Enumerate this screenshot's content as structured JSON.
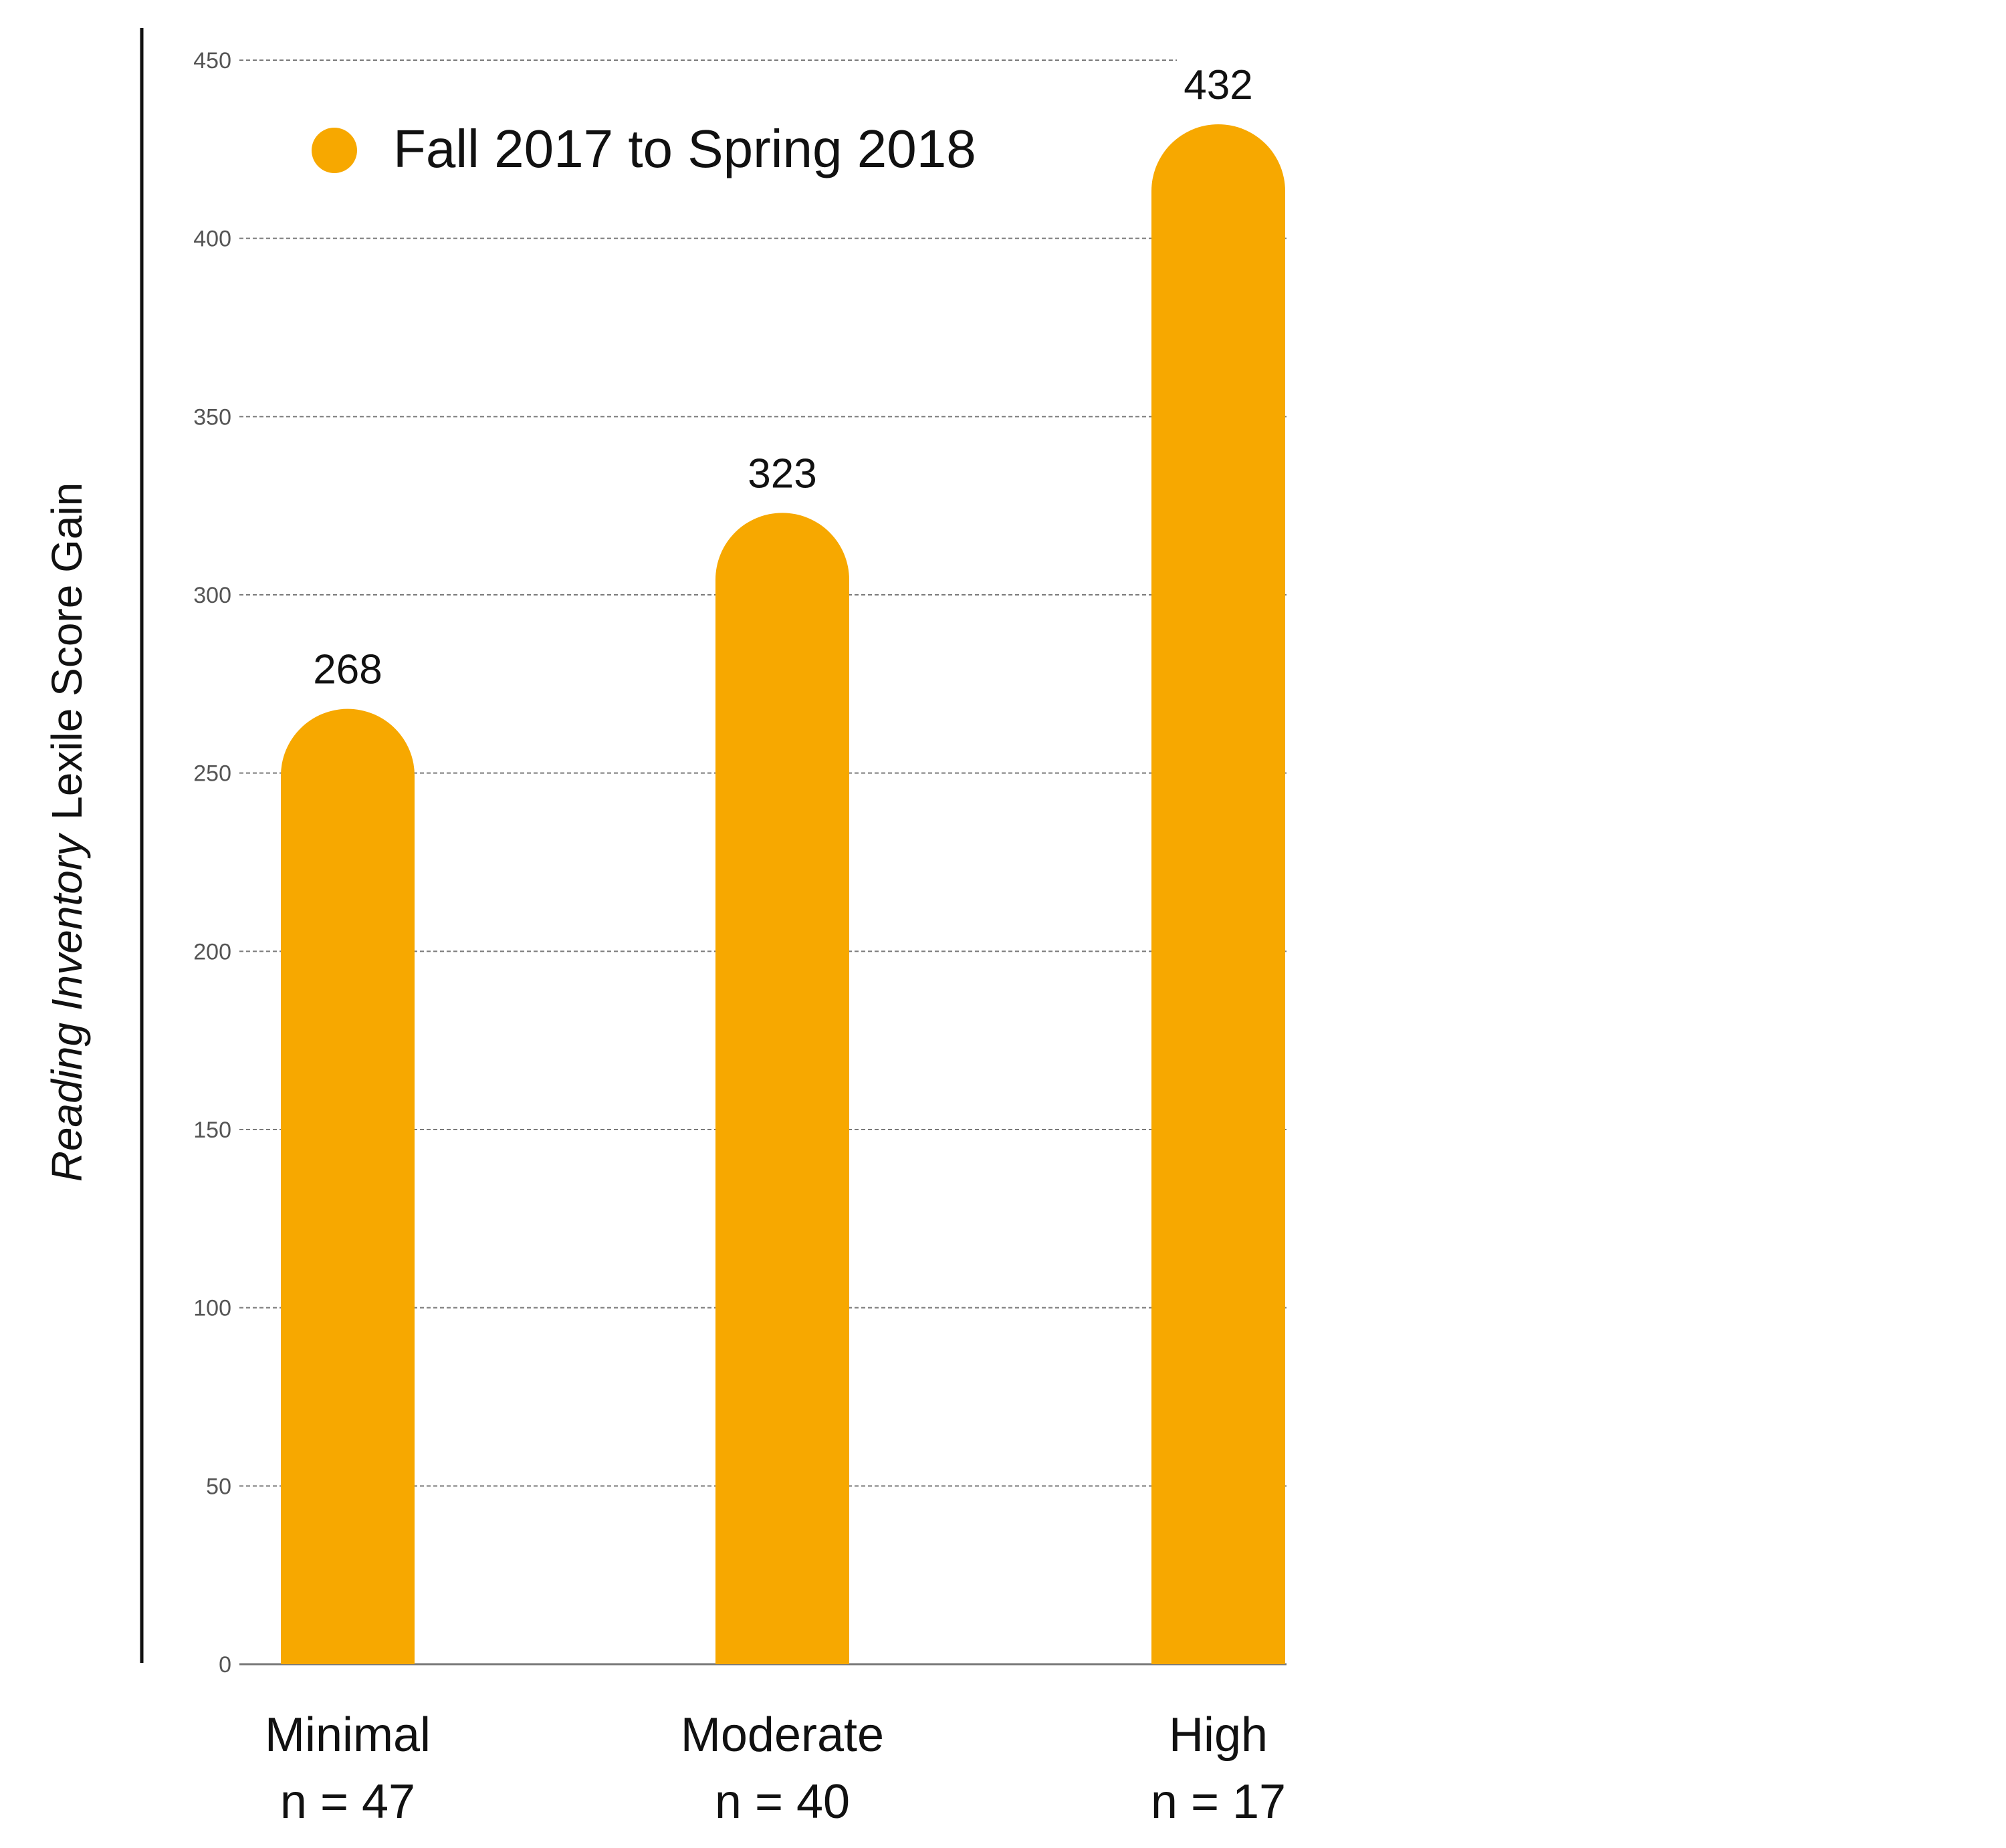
{
  "chart_data": {
    "type": "bar",
    "categories": [
      "Minimal",
      "Moderate",
      "High"
    ],
    "category_sublabels": [
      "n = 47",
      "n = 40",
      "n = 17"
    ],
    "series": [
      {
        "name": "Fall 2017 to Spring 2018",
        "values": [
          268,
          323,
          432
        ]
      }
    ],
    "data_labels": [
      "268",
      "323",
      "432"
    ],
    "ylabel_italic": "Reading Inventory",
    "ylabel_rest": "Lexile Score Gain",
    "ylim": [
      0,
      450
    ],
    "yticks": [
      0,
      50,
      100,
      150,
      200,
      250,
      300,
      350,
      400,
      450
    ],
    "grid": true,
    "legend_position": "top-left",
    "bar_color": "#F7A800"
  }
}
